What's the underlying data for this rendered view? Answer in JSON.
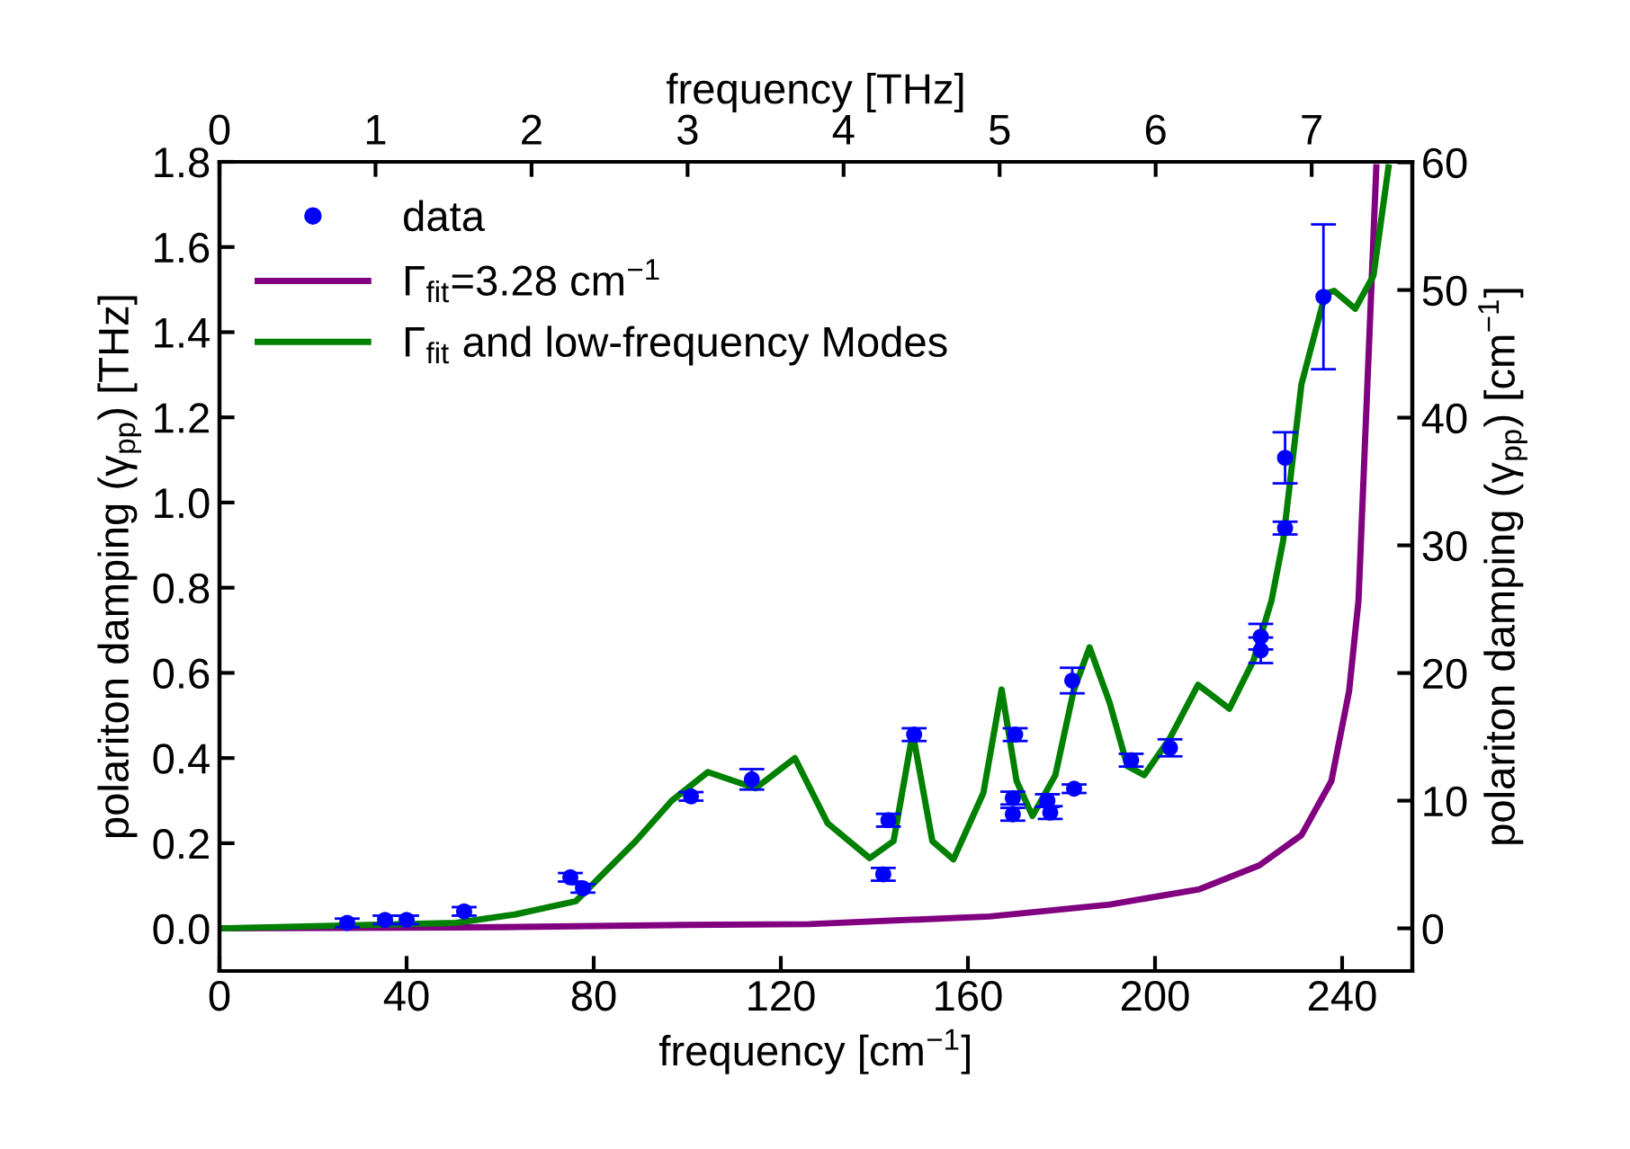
{
  "chart_data": {
    "type": "line",
    "xlabel": "frequency [cm$^{−1}$]",
    "x2label": "frequency [THz]",
    "ylabel": "polariton damping (γ$_{pp}$) [THz]",
    "y2label": "polariton damping (γ$_{pp}$) [cm$^{−1}$]",
    "xlim": [
      0,
      255
    ],
    "xticks": [
      0,
      40,
      80,
      120,
      160,
      200,
      240
    ],
    "x2lim": [
      0,
      7.645
    ],
    "x2ticks": [
      0,
      1,
      2,
      3,
      4,
      5,
      6,
      7
    ],
    "ylim": [
      -0.1,
      1.8
    ],
    "yticks": [
      {
        "value": 0.0,
        "label": "0.0"
      },
      0.2,
      0.4,
      0.6,
      0.8,
      {
        "value": 1.0,
        "label": "1.0"
      },
      1.2,
      1.4,
      1.6,
      1.8
    ],
    "y2lim": [
      -3.34,
      60.04
    ],
    "y2ticks": [
      0,
      10,
      20,
      30,
      40,
      50,
      60
    ],
    "grid": false,
    "legend": "top left",
    "series": [
      {
        "name": "data",
        "type": "scatter",
        "color": "#0000ff",
        "marker": "circle",
        "x": [
          27.3,
          35.4,
          40,
          52.3,
          75,
          77.7,
          100.8,
          113.8,
          141.9,
          143,
          148.5,
          169.6,
          169.6,
          170.1,
          177,
          177.6,
          182.3,
          182.7,
          194.9,
          203.2,
          222.6,
          222.6,
          227.8,
          227.8,
          236
        ],
        "values": [
          0.013,
          0.02,
          0.02,
          0.04,
          0.12,
          0.094,
          0.31,
          0.35,
          0.127,
          0.254,
          0.455,
          0.306,
          0.268,
          0.455,
          0.3,
          0.272,
          0.582,
          0.328,
          0.395,
          0.424,
          0.685,
          0.653,
          1.105,
          0.94,
          1.483
        ],
        "errors": [
          0.01,
          0.01,
          0.01,
          0.01,
          0.01,
          0.01,
          0.01,
          0.024,
          0.015,
          0.015,
          0.015,
          0.015,
          0.015,
          0.015,
          0.015,
          0.015,
          0.03,
          0.01,
          0.015,
          0.02,
          0.03,
          0.03,
          0.06,
          0.015,
          0.17
        ]
      },
      {
        "name": "Γ$_{fit}$=3.28 cm$^{−1}$",
        "color": "#800080",
        "marker": "none",
        "line_style": "solid",
        "x": [
          0,
          60,
          100,
          126,
          164.6,
          190.3,
          209.5,
          222.3,
          231.3,
          237.7,
          241.5,
          243.5,
          245.4,
          247.3
        ],
        "values": [
          0,
          0.003,
          0.008,
          0.01,
          0.028,
          0.056,
          0.092,
          0.148,
          0.219,
          0.346,
          0.558,
          0.77,
          1.278,
          1.787
        ]
      },
      {
        "name": "Γ$_{fit}$ and low-frequency Modes",
        "color": "#008000",
        "marker": "none",
        "line_style": "solid",
        "x": [
          0,
          50.5,
          63.3,
          76.2,
          89,
          96.7,
          104.4,
          114.6,
          123,
          126.2,
          130,
          139,
          144.1,
          148.2,
          152.4,
          156.9,
          163.3,
          167.2,
          170.4,
          173.8,
          178.7,
          182.6,
          186,
          190.3,
          194.1,
          197.7,
          203.1,
          209.2,
          215.9,
          221,
          224.9,
          227.4,
          231.3,
          236.4,
          238.3,
          242.8,
          246.7,
          249.9
        ],
        "values": [
          0,
          0.013,
          0.033,
          0.064,
          0.205,
          0.3,
          0.367,
          0.329,
          0.4,
          0.33,
          0.247,
          0.165,
          0.205,
          0.459,
          0.205,
          0.162,
          0.318,
          0.561,
          0.346,
          0.264,
          0.36,
          0.558,
          0.66,
          0.53,
          0.381,
          0.36,
          0.445,
          0.572,
          0.516,
          0.628,
          0.77,
          0.911,
          1.278,
          1.49,
          1.497,
          1.455,
          1.533,
          1.787
        ]
      }
    ]
  }
}
